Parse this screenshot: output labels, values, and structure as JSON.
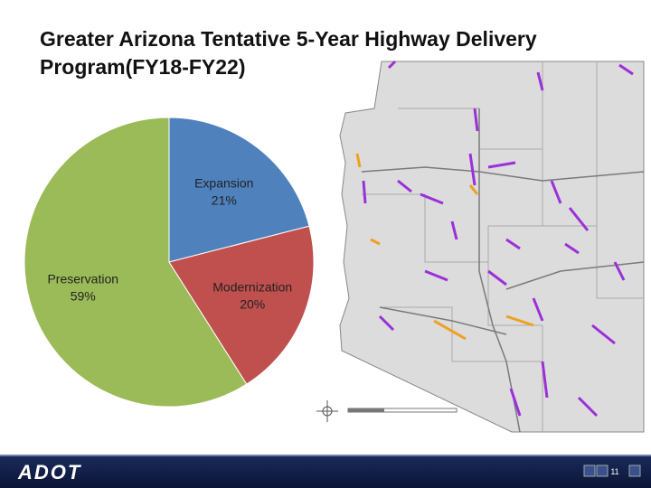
{
  "chart_data": {
    "type": "pie",
    "title": "Greater Arizona Tentative 5-Year Highway Delivery Program(FY18-FY22)",
    "categories": [
      "Expansion",
      "Modernization",
      "Preservation"
    ],
    "values": [
      21,
      20,
      59
    ],
    "value_labels": [
      "21%",
      "20%",
      "59%"
    ],
    "colors": [
      "#4f81bd",
      "#c0504d",
      "#9bbb59"
    ]
  },
  "footer": {
    "logo": "ADOT",
    "page_number": "11"
  }
}
